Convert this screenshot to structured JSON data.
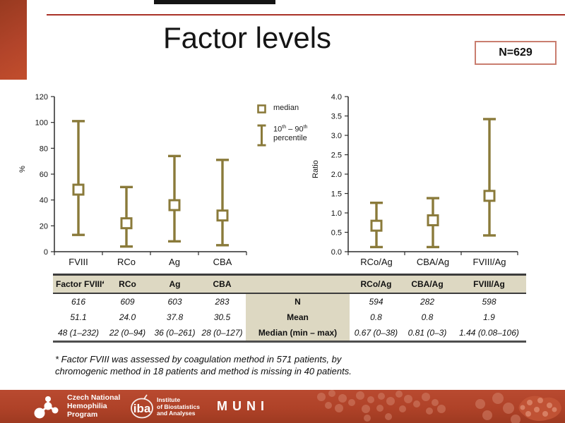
{
  "slide": {
    "title": "Factor levels",
    "n_badge": "N=629"
  },
  "legend": {
    "median_label": "median",
    "pct_10": "10",
    "pct_sup1": "th",
    "pct_dash_90": " – 90",
    "pct_sup2": "th",
    "pct_word": "percentile"
  },
  "chart_data": [
    {
      "type": "error-bar",
      "title": "",
      "ylabel": "%",
      "ylim": [
        0,
        120
      ],
      "ytick_step": 20,
      "ytick_decimals": 0,
      "categories": [
        "FVIII",
        "RCo",
        "Ag",
        "CBA"
      ],
      "series": [
        {
          "name": "median",
          "values": [
            48,
            22,
            36,
            28
          ]
        },
        {
          "name": "p10",
          "values": [
            13,
            4,
            8,
            5
          ]
        },
        {
          "name": "p90",
          "values": [
            101,
            50,
            74,
            71
          ]
        }
      ],
      "legend_note": "square = median, whiskers = 10th-90th percentile",
      "grid": false
    },
    {
      "type": "error-bar",
      "title": "",
      "ylabel": "Ratio",
      "ylim": [
        0,
        4
      ],
      "ytick_step": 0.5,
      "ytick_decimals": 1,
      "categories": [
        "RCo/Ag",
        "CBA/Ag",
        "FVIII/Ag"
      ],
      "series": [
        {
          "name": "median",
          "values": [
            0.67,
            0.81,
            1.44
          ]
        },
        {
          "name": "p10",
          "values": [
            0.12,
            0.12,
            0.42
          ]
        },
        {
          "name": "p90",
          "values": [
            1.26,
            1.38,
            3.42
          ]
        }
      ],
      "legend_note": "square = median, whiskers = 10th-90th percentile",
      "grid": false
    }
  ],
  "table": {
    "header": [
      "Factor FVIII*",
      "RCo",
      "Ag",
      "CBA",
      "",
      "RCo/Ag",
      "CBA/Ag",
      "FVIII/Ag"
    ],
    "rows": [
      {
        "label": "N",
        "left": [
          "616",
          "609",
          "603",
          "283"
        ],
        "right": [
          "594",
          "282",
          "598"
        ]
      },
      {
        "label": "Mean",
        "left": [
          "51.1",
          "24.0",
          "37.8",
          "30.5"
        ],
        "right": [
          "0.8",
          "0.8",
          "1.9"
        ]
      },
      {
        "label": "Median (min – max)",
        "left": [
          "48 (1–232)",
          "22 (0–94)",
          "36 (0–261)",
          "28 (0–127)"
        ],
        "right": [
          "0.67 (0–38)",
          "0.81 (0–3)",
          "1.44 (0.08–106)"
        ]
      }
    ]
  },
  "footnote": {
    "line1": "* Factor FVIII was assessed by coagulation method in 571 patients, by",
    "line2": "chromogenic method in 18 patients and method is missing in 40 patients."
  },
  "footer": {
    "cnhp": {
      "line1": "Czech National",
      "line2": "Hemophilia",
      "line3": "Program"
    },
    "iba": {
      "brand": "iba",
      "line1": "Institute",
      "line2": "of Biostatistics",
      "line3": "and Analyses"
    },
    "muni": "MUNI"
  },
  "colors": {
    "accent_red": "#b0432a",
    "rule_red": "#a93127",
    "badge_border": "#c97d6f",
    "olive": "#8a7a3a",
    "table_beige": "#ddd8c2",
    "axis": "#2b2b2b"
  }
}
